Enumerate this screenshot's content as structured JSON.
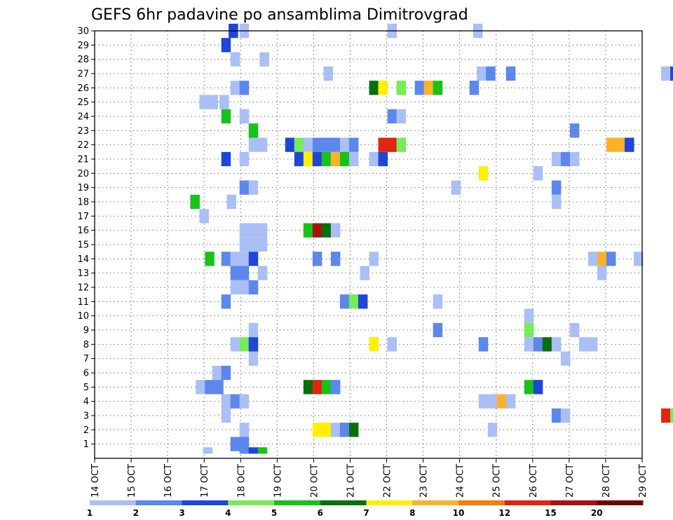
{
  "chart_data": {
    "type": "heatmap",
    "title": "GEFS 6hr padavine po ansamblima Dimitrovgrad",
    "x_tick_labels": [
      "14 OCT",
      "15 OCT",
      "16 OCT",
      "17 OCT",
      "18 OCT",
      "19 OCT",
      "20 OCT",
      "21 OCT",
      "22 OCT",
      "23 OCT",
      "24 OCT",
      "25 OCT",
      "26 OCT",
      "27 OCT",
      "28 OCT",
      "29 OCT"
    ],
    "y_tick_labels": [
      "1",
      "2",
      "3",
      "4",
      "5",
      "6",
      "7",
      "8",
      "9",
      "10",
      "11",
      "12",
      "13",
      "14",
      "15",
      "16",
      "17",
      "18",
      "19",
      "20",
      "21",
      "22",
      "23",
      "24",
      "25",
      "26",
      "27",
      "28",
      "29",
      "30"
    ],
    "grid": true,
    "color_scale": {
      "labels": [
        "1",
        "2",
        "3",
        "4",
        "5",
        "6",
        "7",
        "8",
        "10",
        "12",
        "15",
        "20"
      ],
      "colors": [
        "#aabff5",
        "#5c87eb",
        "#1f46d8",
        "#76ec56",
        "#18c218",
        "#07700c",
        "#fff000",
        "#fbb22a",
        "#f57c0e",
        "#de2610",
        "#a8120e",
        "#6e0404"
      ]
    },
    "cells": [
      {
        "member": 30,
        "day": 17.8,
        "level": 2
      },
      {
        "member": 30,
        "day": 18.1,
        "level": 0
      },
      {
        "member": 30,
        "day": 22.15,
        "level": 0
      },
      {
        "member": 30,
        "day": 24.5,
        "level": 0
      },
      {
        "member": 29,
        "day": 17.6,
        "level": 2
      },
      {
        "member": 28,
        "day": 17.85,
        "level": 0
      },
      {
        "member": 28,
        "day": 18.65,
        "level": 0
      },
      {
        "member": 27,
        "day": 20.4,
        "level": 0
      },
      {
        "member": 27,
        "day": 24.6,
        "level": 0
      },
      {
        "member": 27,
        "day": 24.85,
        "level": 1
      },
      {
        "member": 27,
        "day": 25.4,
        "level": 1
      },
      {
        "member": 27,
        "day": 29.65,
        "level": 0
      },
      {
        "member": 27,
        "day": 29.9,
        "level": 2
      },
      {
        "member": 26,
        "day": 17.85,
        "level": 0
      },
      {
        "member": 26,
        "day": 18.1,
        "level": 1
      },
      {
        "member": 26,
        "day": 21.65,
        "level": 5
      },
      {
        "member": 26,
        "day": 21.9,
        "level": 6
      },
      {
        "member": 26,
        "day": 22.4,
        "level": 3
      },
      {
        "member": 26,
        "day": 22.9,
        "level": 1
      },
      {
        "member": 26,
        "day": 23.15,
        "level": 7
      },
      {
        "member": 26,
        "day": 23.4,
        "level": 4
      },
      {
        "member": 26,
        "day": 24.4,
        "level": 1
      },
      {
        "member": 25,
        "day": 17.0,
        "level": 0
      },
      {
        "member": 25,
        "day": 17.25,
        "level": 0
      },
      {
        "member": 25,
        "day": 17.55,
        "level": 0
      },
      {
        "member": 24,
        "day": 17.6,
        "level": 4
      },
      {
        "member": 24,
        "day": 18.1,
        "level": 0
      },
      {
        "member": 24,
        "day": 22.15,
        "level": 1
      },
      {
        "member": 24,
        "day": 22.4,
        "level": 0
      },
      {
        "member": 23,
        "day": 18.35,
        "level": 4
      },
      {
        "member": 23,
        "day": 27.15,
        "level": 1
      },
      {
        "member": 22,
        "day": 18.35,
        "level": 0
      },
      {
        "member": 22,
        "day": 18.6,
        "level": 0
      },
      {
        "member": 22,
        "day": 19.35,
        "level": 2
      },
      {
        "member": 22,
        "day": 19.6,
        "level": 3
      },
      {
        "member": 22,
        "day": 19.85,
        "level": 0
      },
      {
        "member": 22,
        "day": 20.1,
        "level": 1
      },
      {
        "member": 22,
        "day": 20.35,
        "level": 1
      },
      {
        "member": 22,
        "day": 20.6,
        "level": 1
      },
      {
        "member": 22,
        "day": 20.85,
        "level": 0
      },
      {
        "member": 22,
        "day": 21.1,
        "level": 1
      },
      {
        "member": 22,
        "day": 21.9,
        "level": 9
      },
      {
        "member": 22,
        "day": 22.15,
        "level": 9
      },
      {
        "member": 22,
        "day": 22.4,
        "level": 3
      },
      {
        "member": 22,
        "day": 28.15,
        "level": 7
      },
      {
        "member": 22,
        "day": 28.4,
        "level": 7
      },
      {
        "member": 22,
        "day": 28.65,
        "level": 2
      },
      {
        "member": 21,
        "day": 17.6,
        "level": 2
      },
      {
        "member": 21,
        "day": 18.1,
        "level": 0
      },
      {
        "member": 21,
        "day": 19.6,
        "level": 2
      },
      {
        "member": 21,
        "day": 19.85,
        "level": 6
      },
      {
        "member": 21,
        "day": 20.1,
        "level": 2
      },
      {
        "member": 21,
        "day": 20.35,
        "level": 4
      },
      {
        "member": 21,
        "day": 20.6,
        "level": 7
      },
      {
        "member": 21,
        "day": 20.85,
        "level": 4
      },
      {
        "member": 21,
        "day": 21.1,
        "level": 0
      },
      {
        "member": 21,
        "day": 21.65,
        "level": 0
      },
      {
        "member": 21,
        "day": 21.9,
        "level": 2
      },
      {
        "member": 21,
        "day": 26.65,
        "level": 0
      },
      {
        "member": 21,
        "day": 26.9,
        "level": 1
      },
      {
        "member": 21,
        "day": 27.15,
        "level": 0
      },
      {
        "member": 20,
        "day": 24.65,
        "level": 6
      },
      {
        "member": 20,
        "day": 26.15,
        "level": 0
      },
      {
        "member": 19,
        "day": 18.1,
        "level": 1
      },
      {
        "member": 19,
        "day": 18.35,
        "level": 0
      },
      {
        "member": 19,
        "day": 23.9,
        "level": 0
      },
      {
        "member": 19,
        "day": 26.65,
        "level": 1
      },
      {
        "member": 18,
        "day": 16.75,
        "level": 4
      },
      {
        "member": 18,
        "day": 17.75,
        "level": 0
      },
      {
        "member": 18,
        "day": 26.65,
        "level": 0
      },
      {
        "member": 17,
        "day": 17.0,
        "level": 0
      },
      {
        "member": 16,
        "day": 18.1,
        "level": 0
      },
      {
        "member": 16,
        "day": 18.35,
        "level": 0
      },
      {
        "member": 16,
        "day": 18.6,
        "level": 0
      },
      {
        "member": 16,
        "day": 19.85,
        "level": 4
      },
      {
        "member": 16,
        "day": 20.1,
        "level": 10
      },
      {
        "member": 16,
        "day": 20.35,
        "level": 5
      },
      {
        "member": 16,
        "day": 20.6,
        "level": 0
      },
      {
        "member": 15,
        "day": 18.1,
        "level": 0
      },
      {
        "member": 15,
        "day": 18.35,
        "level": 0
      },
      {
        "member": 15,
        "day": 18.6,
        "level": 0
      },
      {
        "member": 14,
        "day": 17.15,
        "level": 4
      },
      {
        "member": 14,
        "day": 17.6,
        "level": 1
      },
      {
        "member": 14,
        "day": 17.85,
        "level": 0
      },
      {
        "member": 14,
        "day": 18.1,
        "level": 0
      },
      {
        "member": 14,
        "day": 18.35,
        "level": 2
      },
      {
        "member": 14,
        "day": 20.1,
        "level": 1
      },
      {
        "member": 14,
        "day": 20.6,
        "level": 1
      },
      {
        "member": 14,
        "day": 21.65,
        "level": 0
      },
      {
        "member": 14,
        "day": 27.65,
        "level": 0
      },
      {
        "member": 14,
        "day": 27.9,
        "level": 7
      },
      {
        "member": 14,
        "day": 28.15,
        "level": 1
      },
      {
        "member": 14,
        "day": 28.9,
        "level": 0
      },
      {
        "member": 13,
        "day": 17.85,
        "level": 1
      },
      {
        "member": 13,
        "day": 18.1,
        "level": 1
      },
      {
        "member": 13,
        "day": 18.6,
        "level": 0
      },
      {
        "member": 13,
        "day": 21.4,
        "level": 0
      },
      {
        "member": 13,
        "day": 27.9,
        "level": 0
      },
      {
        "member": 12,
        "day": 17.85,
        "level": 0
      },
      {
        "member": 12,
        "day": 18.1,
        "level": 0
      },
      {
        "member": 12,
        "day": 18.35,
        "level": 1
      },
      {
        "member": 11,
        "day": 17.6,
        "level": 1
      },
      {
        "member": 11,
        "day": 20.85,
        "level": 1
      },
      {
        "member": 11,
        "day": 21.1,
        "level": 3
      },
      {
        "member": 11,
        "day": 21.35,
        "level": 2
      },
      {
        "member": 11,
        "day": 23.4,
        "level": 0
      },
      {
        "member": 10,
        "day": 25.9,
        "level": 0
      },
      {
        "member": 9,
        "day": 18.35,
        "level": 0
      },
      {
        "member": 9,
        "day": 23.4,
        "level": 1
      },
      {
        "member": 9,
        "day": 25.9,
        "level": 3
      },
      {
        "member": 9,
        "day": 27.15,
        "level": 0
      },
      {
        "member": 8,
        "day": 17.85,
        "level": 0
      },
      {
        "member": 8,
        "day": 18.1,
        "level": 3
      },
      {
        "member": 8,
        "day": 18.35,
        "level": 2
      },
      {
        "member": 8,
        "day": 21.65,
        "level": 6
      },
      {
        "member": 8,
        "day": 22.15,
        "level": 0
      },
      {
        "member": 8,
        "day": 24.65,
        "level": 1
      },
      {
        "member": 8,
        "day": 25.9,
        "level": 0
      },
      {
        "member": 8,
        "day": 26.15,
        "level": 1
      },
      {
        "member": 8,
        "day": 26.4,
        "level": 5
      },
      {
        "member": 8,
        "day": 26.65,
        "level": 0
      },
      {
        "member": 8,
        "day": 27.4,
        "level": 0
      },
      {
        "member": 8,
        "day": 27.65,
        "level": 0
      },
      {
        "member": 7,
        "day": 18.35,
        "level": 0
      },
      {
        "member": 7,
        "day": 26.9,
        "level": 0
      },
      {
        "member": 6,
        "day": 17.35,
        "level": 0
      },
      {
        "member": 6,
        "day": 17.6,
        "level": 1
      },
      {
        "member": 5,
        "day": 16.9,
        "level": 0
      },
      {
        "member": 5,
        "day": 17.15,
        "level": 1
      },
      {
        "member": 5,
        "day": 17.4,
        "level": 1
      },
      {
        "member": 5,
        "day": 19.85,
        "level": 5
      },
      {
        "member": 5,
        "day": 20.1,
        "level": 9
      },
      {
        "member": 5,
        "day": 20.35,
        "level": 4
      },
      {
        "member": 5,
        "day": 20.6,
        "level": 1
      },
      {
        "member": 5,
        "day": 25.9,
        "level": 4
      },
      {
        "member": 5,
        "day": 26.15,
        "level": 2
      },
      {
        "member": 4,
        "day": 17.6,
        "level": 0
      },
      {
        "member": 4,
        "day": 17.85,
        "level": 1
      },
      {
        "member": 4,
        "day": 18.1,
        "level": 0
      },
      {
        "member": 4,
        "day": 24.65,
        "level": 0
      },
      {
        "member": 4,
        "day": 24.9,
        "level": 0
      },
      {
        "member": 4,
        "day": 25.15,
        "level": 7
      },
      {
        "member": 4,
        "day": 25.4,
        "level": 0
      },
      {
        "member": 3,
        "day": 17.6,
        "level": 0
      },
      {
        "member": 3,
        "day": 26.65,
        "level": 1
      },
      {
        "member": 3,
        "day": 26.9,
        "level": 0
      },
      {
        "member": 3,
        "day": 29.65,
        "level": 9
      },
      {
        "member": 3,
        "day": 29.9,
        "level": 3
      },
      {
        "member": 2,
        "day": 18.1,
        "level": 0
      },
      {
        "member": 2,
        "day": 20.1,
        "level": 6
      },
      {
        "member": 2,
        "day": 20.35,
        "level": 6
      },
      {
        "member": 2,
        "day": 20.6,
        "level": 0
      },
      {
        "member": 2,
        "day": 20.85,
        "level": 1
      },
      {
        "member": 2,
        "day": 21.1,
        "level": 5
      },
      {
        "member": 2,
        "day": 24.9,
        "level": 0
      },
      {
        "member": 1,
        "day": 17.85,
        "level": 1
      },
      {
        "member": 1,
        "day": 18.1,
        "level": 1
      },
      {
        "member": 0.55,
        "day": 17.1,
        "level": 0
      },
      {
        "member": 0.55,
        "day": 18.1,
        "level": 1
      },
      {
        "member": 0.55,
        "day": 18.35,
        "level": 2
      },
      {
        "member": 0.55,
        "day": 18.6,
        "level": 4
      }
    ]
  }
}
